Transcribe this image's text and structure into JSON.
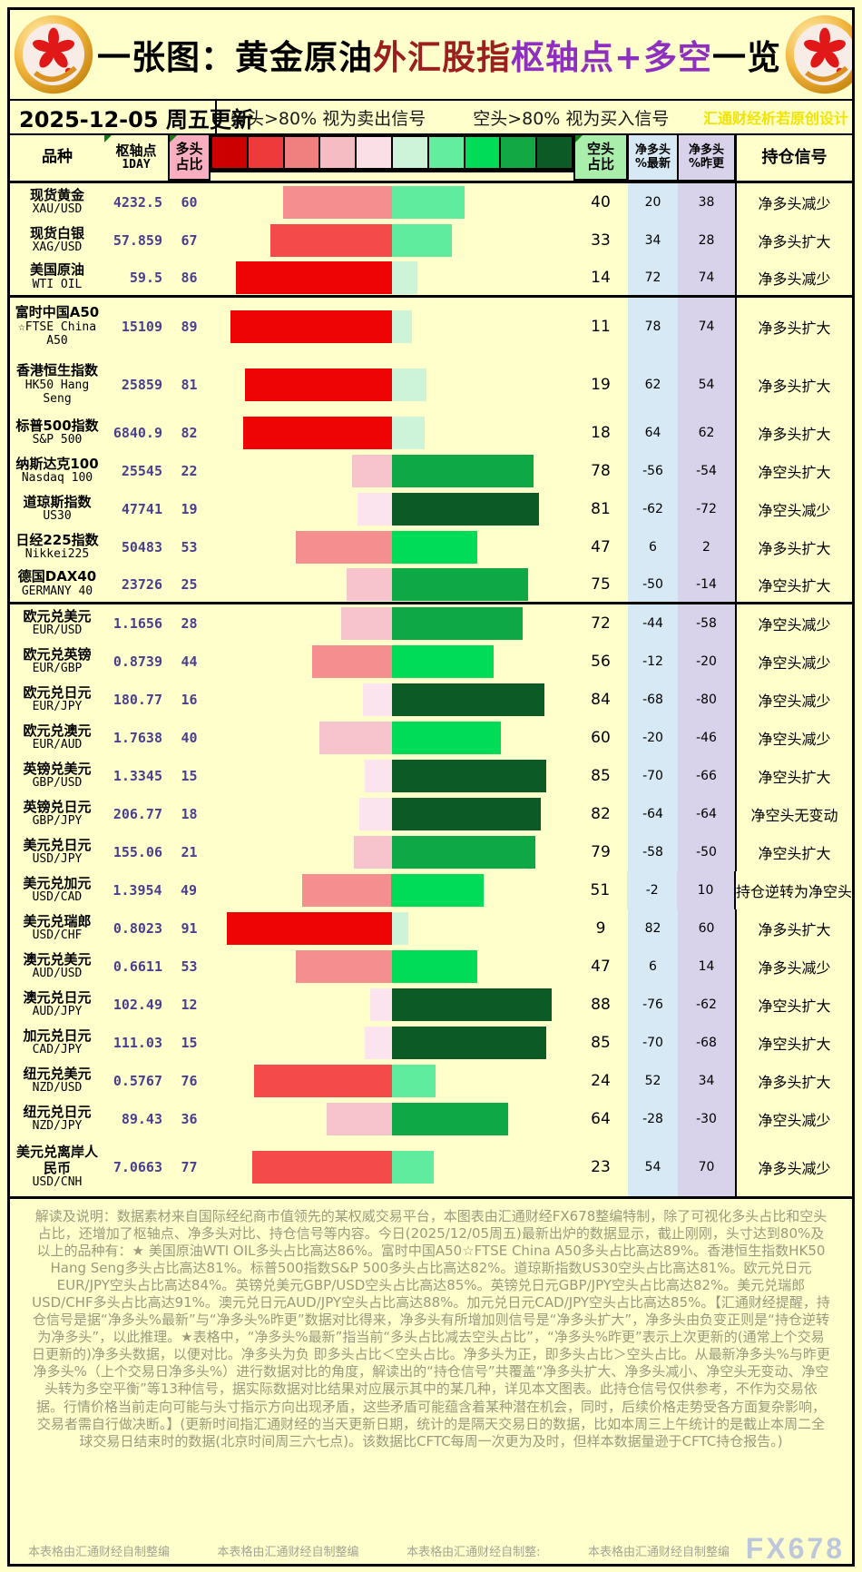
{
  "title": {
    "segments": [
      {
        "text": "一张图：黄金原油",
        "color": "#000000"
      },
      {
        "text": "外汇股指",
        "color": "#9C1F1F"
      },
      {
        "text": "枢轴点+多空",
        "color": "#8F2FBF"
      },
      {
        "text": "一览",
        "color": "#000000"
      }
    ]
  },
  "date_row": {
    "date": "2025-12-05 周五更新",
    "legend_long": "多头>80% 视为卖出信号",
    "legend_short": "空头>80% 视为买入信号",
    "credit": "汇通财经析若原创设计"
  },
  "header": {
    "variety": "品种",
    "pivot_line1": "枢轴点",
    "pivot_line2": "1DAY",
    "long_line1": "多头",
    "long_line2": "占比",
    "short_line1": "空头",
    "short_line2": "占比",
    "net_latest_line1": "净多头",
    "net_latest_line2": "%最新",
    "net_prev_line1": "净多头",
    "net_prev_line2": "%昨更",
    "signal": "持仓信号"
  },
  "palette": {
    "background": "#FFFFCC",
    "header_pink": "#F8AEBE",
    "header_green": "#A9EFAB",
    "col_blue": "#D7E9F4",
    "col_lavender": "#D8D2EA",
    "number_purple": "#4A3F8F",
    "title_red": "#9C1F1F",
    "title_purple": "#8F2FBF",
    "credit_yellow": "#F0E400",
    "notes_gray": "#9A9A7E",
    "watermark_blue": "#BDC7DB",
    "legend_scale": [
      "#CC0000",
      "#EE3A3A",
      "#F08080",
      "#F5BCC4",
      "#FBDFE7",
      "#CDF3D9",
      "#63ED9F",
      "#00DC57",
      "#12A844",
      "#0C5B26"
    ],
    "bar_red": [
      "#EE0404",
      "#F44A4A",
      "#F58E8E",
      "#F7C3CC",
      "#FBE4EE"
    ],
    "bar_green": [
      "#CDF3D9",
      "#5FEC9E",
      "#00DC57",
      "#0FA846",
      "#0C5B26"
    ]
  },
  "chart_data": {
    "type": "table",
    "title": "一张图：黄金原油外汇股指枢轴点+多空一览",
    "columns": [
      "品种",
      "枢轴点1DAY",
      "多头占比",
      "空头占比",
      "净多头%最新",
      "净多头%昨更",
      "持仓信号"
    ],
    "bar_note": "每行中部为对称条形图：红条长度=多头占比(向左)，绿条长度=空头占比(向右)，颜色深浅按20%分档",
    "rows": [
      {
        "cn": [
          "现货黄金"
        ],
        "en": [
          "XAU/USD"
        ],
        "pivot": "4232.5",
        "long": 60,
        "short": 40,
        "net_latest": 20,
        "net_prev": 38,
        "signal": "净多头减少",
        "group": 1
      },
      {
        "cn": [
          "现货白银"
        ],
        "en": [
          "XAG/USD"
        ],
        "pivot": "57.859",
        "long": 67,
        "short": 33,
        "net_latest": 34,
        "net_prev": 28,
        "signal": "净多头扩大",
        "group": 1
      },
      {
        "cn": [
          "美国原油"
        ],
        "en": [
          "WTI OIL"
        ],
        "pivot": "59.5",
        "long": 86,
        "short": 14,
        "net_latest": 72,
        "net_prev": 74,
        "signal": "净多头减少",
        "group": 1
      },
      {
        "cn": [
          "富时中国A50"
        ],
        "en": [
          "☆FTSE China",
          "A50"
        ],
        "pivot": "15109",
        "long": 89,
        "short": 11,
        "net_latest": 78,
        "net_prev": 74,
        "signal": "净多头扩大",
        "group": 2
      },
      {
        "cn": [
          "香港恒生指数"
        ],
        "en": [
          "HK50 Hang",
          "Seng"
        ],
        "pivot": "25859",
        "long": 81,
        "short": 19,
        "net_latest": 62,
        "net_prev": 54,
        "signal": "净多头扩大",
        "group": 2
      },
      {
        "cn": [
          "标普500指数"
        ],
        "en": [
          "S&P 500"
        ],
        "pivot": "6840.9",
        "long": 82,
        "short": 18,
        "net_latest": 64,
        "net_prev": 62,
        "signal": "净多头扩大",
        "group": 2
      },
      {
        "cn": [
          "纳斯达克100"
        ],
        "en": [
          "Nasdaq 100"
        ],
        "pivot": "25545",
        "long": 22,
        "short": 78,
        "net_latest": -56,
        "net_prev": -54,
        "signal": "净空头扩大",
        "group": 2
      },
      {
        "cn": [
          "道琼斯指数"
        ],
        "en": [
          "US30"
        ],
        "pivot": "47741",
        "long": 19,
        "short": 81,
        "net_latest": -62,
        "net_prev": -72,
        "signal": "净空头减少",
        "group": 2
      },
      {
        "cn": [
          "日经225指数"
        ],
        "en": [
          "Nikkei225"
        ],
        "pivot": "50483",
        "long": 53,
        "short": 47,
        "net_latest": 6,
        "net_prev": 2,
        "signal": "净多头扩大",
        "group": 2
      },
      {
        "cn": [
          "德国DAX40"
        ],
        "en": [
          "GERMANY 40"
        ],
        "pivot": "23726",
        "long": 25,
        "short": 75,
        "net_latest": -50,
        "net_prev": -14,
        "signal": "净空头扩大",
        "group": 2
      },
      {
        "cn": [
          "欧元兑美元"
        ],
        "en": [
          "EUR/USD"
        ],
        "pivot": "1.1656",
        "long": 28,
        "short": 72,
        "net_latest": -44,
        "net_prev": -58,
        "signal": "净空头减少",
        "group": 3
      },
      {
        "cn": [
          "欧元兑英镑"
        ],
        "en": [
          "EUR/GBP"
        ],
        "pivot": "0.8739",
        "long": 44,
        "short": 56,
        "net_latest": -12,
        "net_prev": -20,
        "signal": "净空头减少",
        "group": 3
      },
      {
        "cn": [
          "欧元兑日元"
        ],
        "en": [
          "EUR/JPY"
        ],
        "pivot": "180.77",
        "long": 16,
        "short": 84,
        "net_latest": -68,
        "net_prev": -80,
        "signal": "净空头减少",
        "group": 3
      },
      {
        "cn": [
          "欧元兑澳元"
        ],
        "en": [
          "EUR/AUD"
        ],
        "pivot": "1.7638",
        "long": 40,
        "short": 60,
        "net_latest": -20,
        "net_prev": -46,
        "signal": "净空头减少",
        "group": 3
      },
      {
        "cn": [
          "英镑兑美元"
        ],
        "en": [
          "GBP/USD"
        ],
        "pivot": "1.3345",
        "long": 15,
        "short": 85,
        "net_latest": -70,
        "net_prev": -66,
        "signal": "净空头扩大",
        "group": 3
      },
      {
        "cn": [
          "英镑兑日元"
        ],
        "en": [
          "GBP/JPY"
        ],
        "pivot": "206.77",
        "long": 18,
        "short": 82,
        "net_latest": -64,
        "net_prev": -64,
        "signal": "净空头无变动",
        "group": 3
      },
      {
        "cn": [
          "美元兑日元"
        ],
        "en": [
          "USD/JPY"
        ],
        "pivot": "155.06",
        "long": 21,
        "short": 79,
        "net_latest": -58,
        "net_prev": -50,
        "signal": "净空头扩大",
        "group": 3
      },
      {
        "cn": [
          "美元兑加元"
        ],
        "en": [
          "USD/CAD"
        ],
        "pivot": "1.3954",
        "long": 49,
        "short": 51,
        "net_latest": -2,
        "net_prev": 10,
        "signal": "持仓逆转为净空头",
        "group": 3
      },
      {
        "cn": [
          "美元兑瑞郎"
        ],
        "en": [
          "USD/CHF"
        ],
        "pivot": "0.8023",
        "long": 91,
        "short": 9,
        "net_latest": 82,
        "net_prev": 60,
        "signal": "净多头扩大",
        "group": 3
      },
      {
        "cn": [
          "澳元兑美元"
        ],
        "en": [
          "AUD/USD"
        ],
        "pivot": "0.6611",
        "long": 53,
        "short": 47,
        "net_latest": 6,
        "net_prev": 14,
        "signal": "净多头减少",
        "group": 3
      },
      {
        "cn": [
          "澳元兑日元"
        ],
        "en": [
          "AUD/JPY"
        ],
        "pivot": "102.49",
        "long": 12,
        "short": 88,
        "net_latest": -76,
        "net_prev": -62,
        "signal": "净空头扩大",
        "group": 3
      },
      {
        "cn": [
          "加元兑日元"
        ],
        "en": [
          "CAD/JPY"
        ],
        "pivot": "111.03",
        "long": 15,
        "short": 85,
        "net_latest": -70,
        "net_prev": -68,
        "signal": "净空头扩大",
        "group": 3
      },
      {
        "cn": [
          "纽元兑美元"
        ],
        "en": [
          "NZD/USD"
        ],
        "pivot": "0.5767",
        "long": 76,
        "short": 24,
        "net_latest": 52,
        "net_prev": 34,
        "signal": "净多头扩大",
        "group": 3
      },
      {
        "cn": [
          "纽元兑日元"
        ],
        "en": [
          "NZD/JPY"
        ],
        "pivot": "89.43",
        "long": 36,
        "short": 64,
        "net_latest": -28,
        "net_prev": -30,
        "signal": "净空头减少",
        "group": 3
      },
      {
        "cn": [
          "美元兑离岸人",
          "民币"
        ],
        "en": [
          "USD/CNH"
        ],
        "pivot": "7.0663",
        "long": 77,
        "short": 23,
        "net_latest": 54,
        "net_prev": 70,
        "signal": "净多头减少",
        "group": 3
      }
    ]
  },
  "notes": {
    "text": "解读及说明：数据素材来自国际经纪商市值领先的某权威交易平台，本图表由汇通财经FX678整编特制，除了可视化多头占比和空头占比，还增加了枢轴点、净多头对比、持仓信号等内容。今日(2025/12/05周五)最新出炉的数据显示，截止刚刚，头寸达到80%及以上的品种有：★ 美国原油WTI OIL多头占比高达86%。富时中国A50☆FTSE China A50多头占比高达89%。香港恒生指数HK50 Hang Seng多头占比高达81%。标普500指数S&P 500多头占比高达82%。道琼斯指数US30空头占比高达81%。欧元兑日元EUR/JPY空头占比高达84%。英镑兑美元GBP/USD空头占比高达85%。英镑兑日元GBP/JPY空头占比高达82%。美元兑瑞郎USD/CHF多头占比高达91%。澳元兑日元AUD/JPY空头占比高达88%。加元兑日元CAD/JPY空头占比高达85%。【汇通财经提醒，持仓信号是据“净多头%最新”与“净多头%昨更”数据对比得来，净多头有所增加则信号是“净多头扩大”，净多头由负变正则是“持仓逆转为净多头”，以此推理。★表格中，“净多头%最新”指当前“多头占比减去空头占比”，“净多头%昨更”表示上次更新的(通常上个交易日更新的)净多头数据，以便对比。净多头为负 即多头占比＜空头占比。净多头为正，即多头占比＞空头占比。从最新净多头%与昨更净多头%（上个交易日净多头%）进行数据对比的角度，解读出的“持仓信号”共覆盖“净多头扩大、净多头减小、净空头无变动、净空头转为多空平衡”等13种信号，据实际数据对比结果对应展示其中的某几种，详见本文图表。此持仓信号仅供参考，不作为交易依据。行情价格当前走向可能与头寸指示方向出现矛盾，这些矛盾可能蕴含着某种潜在机会，同时，后续价格走势受各方面复杂影响，交易者需自行做决断。】(更新时间指汇通财经的当天更新日期，统计的是隔天交易日的数据，比如本周三上午统计的是截止本周二全球交易日结束时的数据(北京时间周三六七点)。该数据比CFTC每周一次更为及时，但样本数据量逊于CFTC持仓报告。)"
  },
  "footer": {
    "labels": [
      "本表格由汇通财经自制整编",
      "本表格由汇通财经自制整编",
      "本表格由汇通财经自制整:",
      "本表格由汇通财经自制整编"
    ],
    "watermark": "FX678"
  }
}
